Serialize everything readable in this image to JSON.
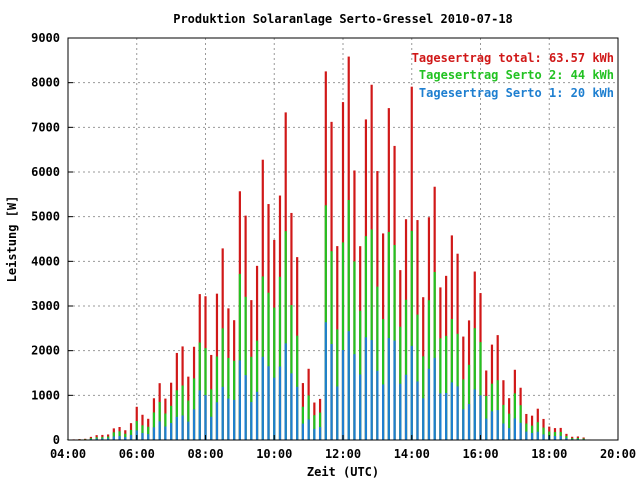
{
  "chart_data": {
    "type": "bar",
    "title": "Produktion Solaranlage Serto-Gressel 2010-07-18",
    "xlabel": "Zeit (UTC)",
    "ylabel": "Leistung [W]",
    "x_ticks": [
      "04:00",
      "06:00",
      "08:00",
      "10:00",
      "12:00",
      "14:00",
      "16:00",
      "18:00",
      "20:00"
    ],
    "y_ticks": [
      "0",
      "1000",
      "2000",
      "3000",
      "4000",
      "5000",
      "6000",
      "7000",
      "8000",
      "9000"
    ],
    "xlim": [
      "04:00",
      "20:00"
    ],
    "ylim": [
      0,
      9000
    ],
    "grid": true,
    "legend_position": "top-right",
    "stacked": true,
    "series": [
      {
        "name": "Tagesertrag Serto 1: 20 kWh",
        "color": "#1e7fd0"
      },
      {
        "name": "Tagesertrag Serto 2: 44 kWh",
        "color": "#22c222"
      },
      {
        "name": "Tagesertrag total: 63.57 kWh",
        "color": "#d01818"
      }
    ],
    "profile": {
      "time_step_minutes": 10,
      "start": "04:00",
      "end": "19:10",
      "peak_total_w": 8600,
      "peak_serto_2_w": 6000,
      "peak_serto_1_w": 3000
    }
  }
}
